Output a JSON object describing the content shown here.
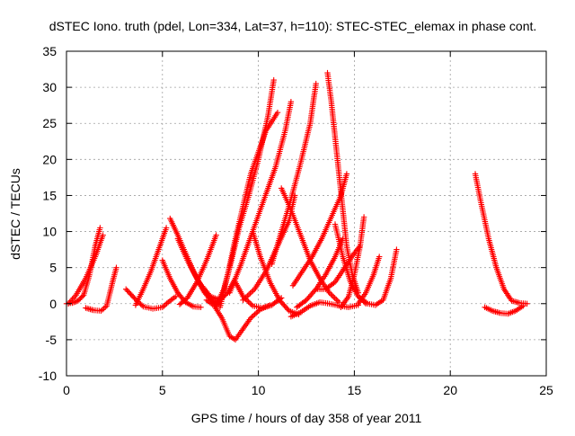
{
  "chart_data": {
    "type": "scatter",
    "title": "dSTEC Iono. truth (pdel, Lon=334, Lat=37, h=110): STEC-STEC_elemax in phase cont.",
    "xlabel": "GPS time / hours of day 358 of year 2011",
    "ylabel": "dSTEC  / TECUs",
    "xlim": [
      0,
      25
    ],
    "ylim": [
      -10,
      35
    ],
    "x_ticks": [
      0,
      5,
      10,
      15,
      20,
      25
    ],
    "x_tick_labels": [
      "0",
      "5",
      "10",
      "15",
      "20",
      "25"
    ],
    "y_ticks": [
      -10,
      -5,
      0,
      5,
      10,
      15,
      20,
      25,
      30,
      35
    ],
    "y_tick_labels": [
      "-10",
      "-5",
      "0",
      "5",
      "10",
      "15",
      "20",
      "25",
      "30",
      "35"
    ],
    "grid": true,
    "marker": "+",
    "colors": {
      "series": "#ff0000",
      "grid": "#a0a0a0",
      "axis": "#000000"
    },
    "series": [
      {
        "points": [
          [
            0.0,
            0.0
          ],
          [
            0.3,
            0.1
          ],
          [
            0.6,
            0.4
          ],
          [
            0.9,
            1.2
          ],
          [
            1.2,
            4.0
          ],
          [
            1.5,
            8.0
          ],
          [
            1.75,
            10.5
          ]
        ]
      },
      {
        "points": [
          [
            1.0,
            -0.6
          ],
          [
            1.4,
            -0.9
          ],
          [
            1.8,
            -1.0
          ],
          [
            2.1,
            -0.3
          ],
          [
            2.4,
            3.0
          ],
          [
            2.6,
            5.0
          ]
        ]
      },
      {
        "points": [
          [
            0.1,
            0.0
          ],
          [
            0.5,
            1.2
          ],
          [
            1.0,
            3.5
          ],
          [
            1.5,
            6.5
          ],
          [
            1.9,
            9.5
          ]
        ]
      },
      {
        "points": [
          [
            3.1,
            2.0
          ],
          [
            3.6,
            0.6
          ],
          [
            4.0,
            -0.4
          ],
          [
            4.5,
            -0.7
          ],
          [
            5.0,
            -0.5
          ],
          [
            5.3,
            0.2
          ],
          [
            5.7,
            1.0
          ]
        ]
      },
      {
        "points": [
          [
            3.6,
            -0.2
          ],
          [
            4.0,
            2.0
          ],
          [
            4.4,
            4.5
          ],
          [
            4.8,
            7.5
          ],
          [
            5.2,
            10.5
          ]
        ]
      },
      {
        "points": [
          [
            5.0,
            6.0
          ],
          [
            5.4,
            3.5
          ],
          [
            5.8,
            1.5
          ],
          [
            6.2,
            0.2
          ],
          [
            6.6,
            -0.4
          ],
          [
            7.0,
            -0.5
          ]
        ]
      },
      {
        "points": [
          [
            5.4,
            11.8
          ],
          [
            5.8,
            9.5
          ],
          [
            6.2,
            7.0
          ],
          [
            6.7,
            4.0
          ],
          [
            7.2,
            1.5
          ],
          [
            7.7,
            0.0
          ]
        ]
      },
      {
        "points": [
          [
            5.9,
            -0.1
          ],
          [
            6.3,
            0.8
          ],
          [
            6.8,
            3.0
          ],
          [
            7.3,
            6.0
          ],
          [
            7.8,
            9.5
          ]
        ]
      },
      {
        "points": [
          [
            6.2,
            7.0
          ],
          [
            6.6,
            4.5
          ],
          [
            7.1,
            2.0
          ],
          [
            7.6,
            0.5
          ],
          [
            8.0,
            -0.2
          ]
        ]
      },
      {
        "points": [
          [
            5.8,
            9.0
          ],
          [
            6.3,
            6.0
          ],
          [
            6.9,
            3.0
          ],
          [
            7.5,
            1.0
          ],
          [
            8.0,
            0.5
          ],
          [
            8.4,
            1.5
          ],
          [
            8.8,
            3.5
          ]
        ]
      },
      {
        "points": [
          [
            7.3,
            0.5
          ],
          [
            7.7,
            -0.3
          ],
          [
            8.1,
            -2.0
          ],
          [
            8.5,
            -4.5
          ],
          [
            8.8,
            -5.0
          ],
          [
            9.2,
            -3.5
          ],
          [
            9.6,
            -2.0
          ],
          [
            10.1,
            -0.8
          ],
          [
            10.6,
            -0.2
          ]
        ]
      },
      {
        "points": [
          [
            7.8,
            -0.3
          ],
          [
            8.2,
            2.0
          ],
          [
            8.6,
            6.0
          ],
          [
            9.0,
            10.5
          ],
          [
            9.5,
            15.0
          ],
          [
            10.0,
            20.0
          ],
          [
            10.5,
            26.0
          ],
          [
            10.8,
            31.0
          ]
        ]
      },
      {
        "points": [
          [
            8.0,
            -0.5
          ],
          [
            8.4,
            4.0
          ],
          [
            8.8,
            9.0
          ],
          [
            9.2,
            13.5
          ],
          [
            9.6,
            18.0
          ],
          [
            10.0,
            21.0
          ],
          [
            10.4,
            24.0
          ],
          [
            11.0,
            26.5
          ]
        ]
      },
      {
        "points": [
          [
            8.5,
            1.5
          ],
          [
            9.1,
            5.5
          ],
          [
            9.7,
            10.0
          ],
          [
            10.3,
            14.5
          ],
          [
            10.9,
            19.0
          ],
          [
            11.4,
            24.0
          ],
          [
            11.7,
            28.0
          ]
        ]
      },
      {
        "points": [
          [
            9.7,
            10.0
          ],
          [
            10.1,
            6.5
          ],
          [
            10.6,
            3.0
          ],
          [
            11.1,
            0.5
          ],
          [
            11.6,
            -1.0
          ],
          [
            12.1,
            -1.5
          ]
        ]
      },
      {
        "points": [
          [
            8.8,
            3.0
          ],
          [
            9.2,
            1.0
          ],
          [
            9.7,
            -0.3
          ],
          [
            10.2,
            -0.6
          ],
          [
            10.7,
            -0.2
          ],
          [
            11.2,
            0.8
          ]
        ]
      },
      {
        "points": [
          [
            9.2,
            0.5
          ],
          [
            9.8,
            2.0
          ],
          [
            10.4,
            4.5
          ],
          [
            11.0,
            8.0
          ],
          [
            11.6,
            11.5
          ],
          [
            11.9,
            15.0
          ]
        ]
      },
      {
        "points": [
          [
            11.2,
            16.0
          ],
          [
            11.7,
            13.0
          ],
          [
            12.2,
            9.5
          ],
          [
            12.7,
            6.0
          ],
          [
            13.2,
            3.5
          ],
          [
            13.7,
            1.5
          ],
          [
            14.2,
            0.2
          ]
        ]
      },
      {
        "points": [
          [
            10.7,
            5.5
          ],
          [
            11.2,
            10.0
          ],
          [
            11.7,
            14.5
          ],
          [
            12.2,
            19.5
          ],
          [
            12.7,
            25.0
          ],
          [
            13.0,
            30.5
          ]
        ]
      },
      {
        "points": [
          [
            11.8,
            2.5
          ],
          [
            12.3,
            4.5
          ],
          [
            12.8,
            6.5
          ],
          [
            13.3,
            9.0
          ],
          [
            13.8,
            12.0
          ],
          [
            14.3,
            15.0
          ],
          [
            14.6,
            18.0
          ]
        ]
      },
      {
        "points": [
          [
            13.6,
            32.0
          ],
          [
            13.8,
            28.0
          ],
          [
            14.0,
            23.0
          ],
          [
            14.2,
            18.0
          ],
          [
            14.4,
            13.0
          ],
          [
            14.6,
            8.0
          ],
          [
            14.9,
            4.0
          ],
          [
            15.2,
            1.5
          ]
        ]
      },
      {
        "points": [
          [
            12.0,
            -0.5
          ],
          [
            12.5,
            0.5
          ],
          [
            13.0,
            2.0
          ],
          [
            13.5,
            4.0
          ],
          [
            14.0,
            6.5
          ],
          [
            14.4,
            9.0
          ]
        ]
      },
      {
        "points": [
          [
            11.7,
            -1.8
          ],
          [
            12.2,
            -1.2
          ],
          [
            12.7,
            -0.3
          ],
          [
            13.2,
            0.2
          ],
          [
            13.7,
            0.0
          ],
          [
            14.2,
            -0.3
          ],
          [
            14.7,
            -0.5
          ],
          [
            15.2,
            -0.2
          ]
        ]
      },
      {
        "points": [
          [
            13.0,
            2.0
          ],
          [
            13.5,
            2.0
          ],
          [
            14.0,
            3.0
          ],
          [
            14.5,
            5.0
          ],
          [
            15.0,
            7.0
          ],
          [
            15.3,
            8.0
          ]
        ]
      },
      {
        "points": [
          [
            14.0,
            11.0
          ],
          [
            14.4,
            6.5
          ],
          [
            14.8,
            3.0
          ],
          [
            15.2,
            1.0
          ],
          [
            15.6,
            0.0
          ]
        ]
      },
      {
        "points": [
          [
            14.3,
            -0.5
          ],
          [
            14.7,
            1.0
          ],
          [
            15.0,
            4.0
          ],
          [
            15.3,
            8.0
          ],
          [
            15.5,
            12.0
          ]
        ]
      },
      {
        "points": [
          [
            15.2,
            0.0
          ],
          [
            15.6,
            1.5
          ],
          [
            16.0,
            4.0
          ],
          [
            16.3,
            6.5
          ]
        ]
      },
      {
        "points": [
          [
            15.3,
            0.8
          ],
          [
            15.7,
            0.0
          ],
          [
            16.1,
            -0.2
          ],
          [
            16.5,
            0.5
          ],
          [
            16.9,
            3.5
          ],
          [
            17.2,
            7.5
          ]
        ]
      },
      {
        "points": [
          [
            21.3,
            18.0
          ],
          [
            21.6,
            14.0
          ],
          [
            22.0,
            9.0
          ],
          [
            22.4,
            5.0
          ],
          [
            22.8,
            2.0
          ],
          [
            23.2,
            0.4
          ],
          [
            23.6,
            0.1
          ],
          [
            24.0,
            0.0
          ]
        ]
      },
      {
        "points": [
          [
            21.8,
            -0.5
          ],
          [
            22.2,
            -1.0
          ],
          [
            22.6,
            -1.3
          ],
          [
            23.0,
            -1.4
          ],
          [
            23.4,
            -1.0
          ],
          [
            23.8,
            -0.3
          ]
        ]
      }
    ]
  }
}
